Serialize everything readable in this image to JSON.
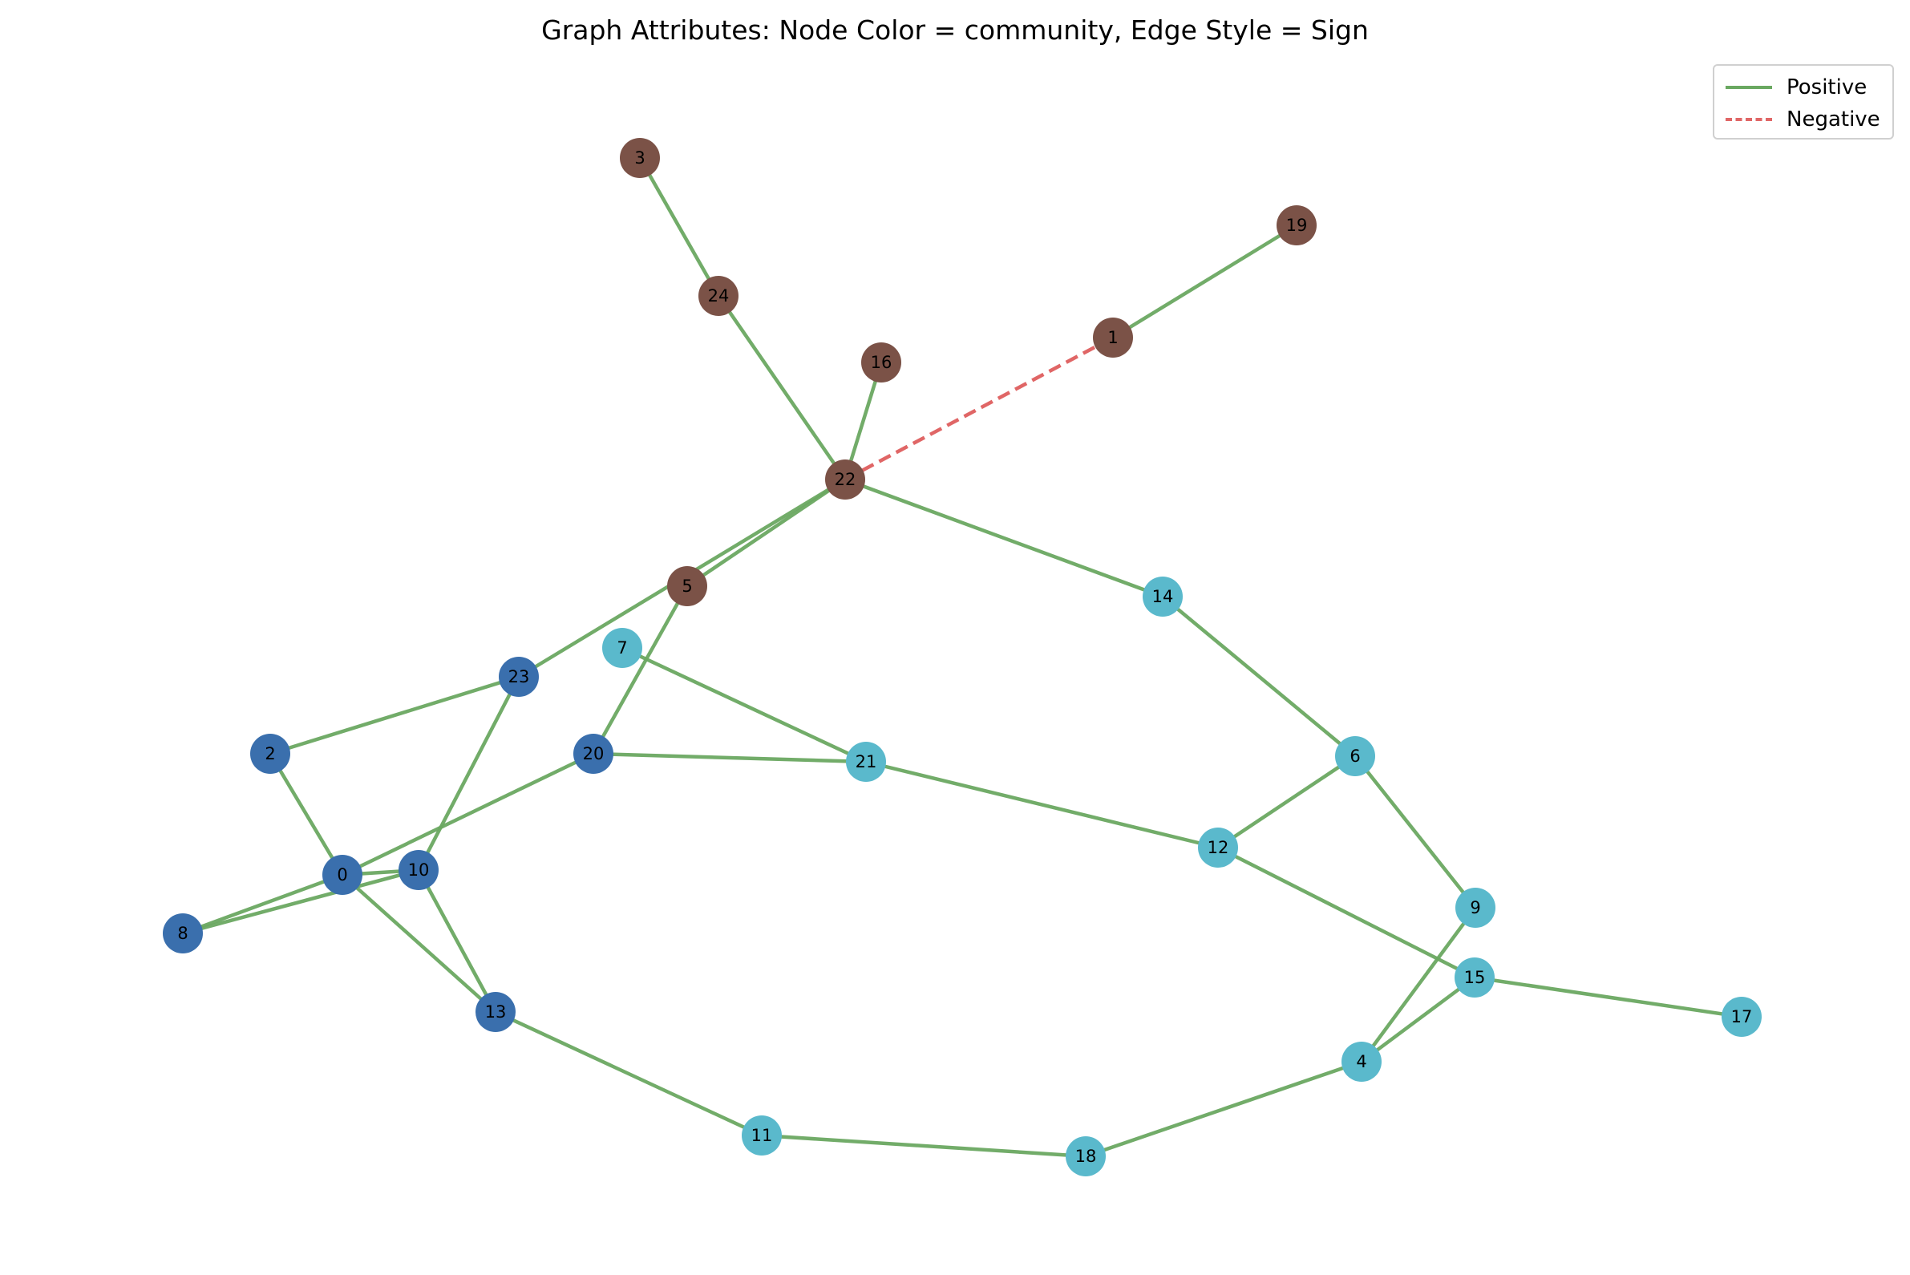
{
  "title": "Graph Attributes: Node Color = community, Edge Style = Sign",
  "legend": {
    "positive": "Positive",
    "negative": "Negative"
  },
  "colors": {
    "positive_edge": "#6aa861",
    "negative_edge": "#e06666",
    "community_brown": "#7b5247",
    "community_blue": "#3a6fad",
    "community_cyan": "#5ab9cc"
  },
  "nodes": [
    {
      "id": "0",
      "community": "blue"
    },
    {
      "id": "1",
      "community": "brown"
    },
    {
      "id": "2",
      "community": "blue"
    },
    {
      "id": "3",
      "community": "brown"
    },
    {
      "id": "4",
      "community": "cyan"
    },
    {
      "id": "5",
      "community": "brown"
    },
    {
      "id": "6",
      "community": "cyan"
    },
    {
      "id": "7",
      "community": "cyan"
    },
    {
      "id": "8",
      "community": "blue"
    },
    {
      "id": "9",
      "community": "cyan"
    },
    {
      "id": "10",
      "community": "blue"
    },
    {
      "id": "11",
      "community": "cyan"
    },
    {
      "id": "12",
      "community": "cyan"
    },
    {
      "id": "13",
      "community": "blue"
    },
    {
      "id": "14",
      "community": "cyan"
    },
    {
      "id": "15",
      "community": "cyan"
    },
    {
      "id": "16",
      "community": "brown"
    },
    {
      "id": "17",
      "community": "cyan"
    },
    {
      "id": "18",
      "community": "cyan"
    },
    {
      "id": "19",
      "community": "brown"
    },
    {
      "id": "20",
      "community": "blue"
    },
    {
      "id": "21",
      "community": "cyan"
    },
    {
      "id": "22",
      "community": "brown"
    },
    {
      "id": "23",
      "community": "blue"
    },
    {
      "id": "24",
      "community": "brown"
    }
  ],
  "edges": [
    {
      "source": "3",
      "target": "24",
      "sign": "positive"
    },
    {
      "source": "24",
      "target": "22",
      "sign": "positive"
    },
    {
      "source": "16",
      "target": "22",
      "sign": "positive"
    },
    {
      "source": "1",
      "target": "19",
      "sign": "positive"
    },
    {
      "source": "22",
      "target": "1",
      "sign": "negative"
    },
    {
      "source": "22",
      "target": "14",
      "sign": "positive"
    },
    {
      "source": "22",
      "target": "23",
      "sign": "positive"
    },
    {
      "source": "22",
      "target": "5",
      "sign": "positive"
    },
    {
      "source": "5",
      "target": "20",
      "sign": "positive"
    },
    {
      "source": "23",
      "target": "2",
      "sign": "positive"
    },
    {
      "source": "23",
      "target": "10",
      "sign": "positive"
    },
    {
      "source": "2",
      "target": "0",
      "sign": "positive"
    },
    {
      "source": "0",
      "target": "20",
      "sign": "positive"
    },
    {
      "source": "0",
      "target": "10",
      "sign": "positive"
    },
    {
      "source": "0",
      "target": "8",
      "sign": "positive"
    },
    {
      "source": "8",
      "target": "10",
      "sign": "positive"
    },
    {
      "source": "0",
      "target": "13",
      "sign": "positive"
    },
    {
      "source": "10",
      "target": "13",
      "sign": "positive"
    },
    {
      "source": "20",
      "target": "21",
      "sign": "positive"
    },
    {
      "source": "7",
      "target": "21",
      "sign": "positive"
    },
    {
      "source": "21",
      "target": "12",
      "sign": "positive"
    },
    {
      "source": "14",
      "target": "6",
      "sign": "positive"
    },
    {
      "source": "6",
      "target": "12",
      "sign": "positive"
    },
    {
      "source": "6",
      "target": "9",
      "sign": "positive"
    },
    {
      "source": "12",
      "target": "15",
      "sign": "positive"
    },
    {
      "source": "9",
      "target": "4",
      "sign": "positive"
    },
    {
      "source": "15",
      "target": "4",
      "sign": "positive"
    },
    {
      "source": "15",
      "target": "17",
      "sign": "positive"
    },
    {
      "source": "4",
      "target": "18",
      "sign": "positive"
    },
    {
      "source": "18",
      "target": "11",
      "sign": "positive"
    },
    {
      "source": "11",
      "target": "13",
      "sign": "positive"
    }
  ]
}
